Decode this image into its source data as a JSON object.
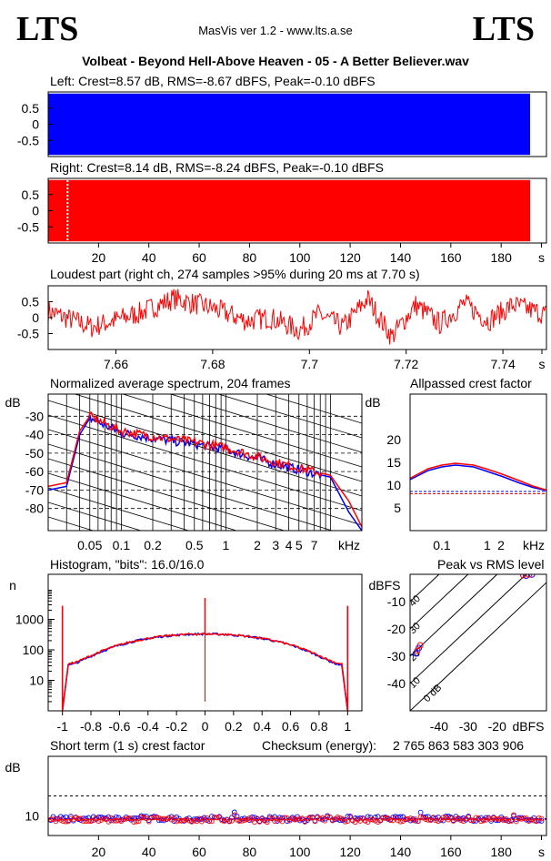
{
  "header": {
    "logo_left": "LTS",
    "logo_right": "LTS",
    "app_name": "MasVis ver 1.2 - www.lts.a.se",
    "file_title": "Volbeat - Beyond Hell-Above Heaven - 05 - A Better Believer.wav"
  },
  "colors": {
    "left": "#0000ff",
    "right": "#ff0000",
    "grid": "#000000"
  },
  "chart_data": [
    {
      "id": "left",
      "type": "area",
      "title": "Left: Crest=8.57 dB, RMS=-8.67 dBFS, Peak=-0.10 dBFS",
      "yticks": [
        "0.5",
        "0",
        "-0.5"
      ],
      "ylim": [
        -1,
        1
      ],
      "xlim": [
        0,
        198
      ],
      "series": [
        {
          "channel": "left",
          "values": [
            -1,
            1
          ]
        }
      ]
    },
    {
      "id": "right",
      "type": "area",
      "title": "Right: Crest=8.14 dB, RMS=-8.24 dBFS, Peak=-0.10 dBFS",
      "yticks": [
        "0.5",
        "0",
        "-0.5"
      ],
      "xticks": [
        "20",
        "40",
        "60",
        "80",
        "100",
        "120",
        "140",
        "160",
        "180",
        "s"
      ],
      "ylim": [
        -1,
        1
      ],
      "xlim": [
        0,
        198
      ],
      "marker_time": 7.7,
      "series": [
        {
          "channel": "right",
          "values": [
            -1,
            1
          ]
        }
      ]
    },
    {
      "id": "loudest",
      "type": "line",
      "title": "Loudest part (right ch, 274 samples >95% during 20 ms at 7.70 s)",
      "yticks": [
        "0.5",
        "0",
        "-0.5"
      ],
      "xticks": [
        "7.66",
        "7.68",
        "7.7",
        "7.72",
        "7.74",
        "s"
      ],
      "xlim": [
        7.646,
        7.749
      ],
      "ylim": [
        -1,
        1
      ],
      "x": [
        7.646,
        7.655,
        7.665,
        7.672,
        7.68,
        7.687,
        7.692,
        7.698,
        7.702,
        7.707,
        7.712,
        7.717,
        7.722,
        7.727,
        7.732,
        7.737,
        7.742,
        7.749
      ],
      "y": [
        0.2,
        -0.3,
        0.15,
        0.6,
        0.3,
        -0.1,
        0.0,
        -0.4,
        0.1,
        -0.3,
        0.6,
        -0.6,
        0.4,
        -0.2,
        0.45,
        -0.1,
        0.4,
        0.1
      ]
    },
    {
      "id": "spectrum",
      "type": "line",
      "title": "Normalized average spectrum, 204 frames",
      "ylabel": "dB",
      "yticks": [
        "-30",
        "-40",
        "-50",
        "-60",
        "-70",
        "-80"
      ],
      "xticks": [
        "0.05",
        "0.1",
        "0.2",
        "0.5",
        "1",
        "2",
        "3",
        "4",
        "5",
        "7",
        "kHz"
      ],
      "xlim": [
        0.02,
        20
      ],
      "ylim": [
        -92,
        -18
      ],
      "series": [
        {
          "channel": "left",
          "x": [
            0.02,
            0.03,
            0.04,
            0.05,
            0.07,
            0.1,
            0.2,
            0.5,
            1,
            2,
            3,
            5,
            7,
            10,
            15,
            20
          ],
          "y": [
            -70,
            -68,
            -40,
            -31,
            -35,
            -39,
            -42,
            -45,
            -48,
            -53,
            -56,
            -59,
            -61,
            -63,
            -82,
            -92
          ]
        },
        {
          "channel": "right",
          "x": [
            0.02,
            0.03,
            0.04,
            0.05,
            0.07,
            0.1,
            0.2,
            0.5,
            1,
            2,
            3,
            5,
            7,
            10,
            15,
            20
          ],
          "y": [
            -68,
            -66,
            -38,
            -30,
            -34,
            -38,
            -41,
            -44,
            -47,
            -52,
            -55,
            -58,
            -60,
            -62,
            -76,
            -90
          ]
        }
      ]
    },
    {
      "id": "allpass",
      "type": "line",
      "title": "Allpassed crest factor",
      "ylabel": "dB",
      "yticks": [
        "20",
        "15",
        "10",
        "5"
      ],
      "xticks": [
        "0.1",
        "1",
        "2",
        "kHz"
      ],
      "xlim": [
        0.02,
        20
      ],
      "ylim": [
        0,
        30
      ],
      "series": [
        {
          "channel": "left",
          "x": [
            0.02,
            0.05,
            0.1,
            0.2,
            0.5,
            1,
            2,
            5,
            10,
            20
          ],
          "y": [
            11.2,
            13.2,
            14.0,
            14.4,
            14.0,
            13.0,
            12.0,
            10.5,
            9.5,
            8.8
          ],
          "ref": 8.6
        },
        {
          "channel": "right",
          "x": [
            0.02,
            0.05,
            0.1,
            0.2,
            0.5,
            1,
            2,
            5,
            10,
            20
          ],
          "y": [
            11.5,
            13.6,
            14.4,
            14.8,
            14.4,
            13.5,
            12.5,
            11.0,
            9.8,
            8.9
          ],
          "ref": 8.1
        }
      ]
    },
    {
      "id": "histogram",
      "type": "line",
      "title": "Histogram, \"bits\": 16.0/16.0",
      "ylabel": "n",
      "yticks": [
        "1000",
        "100",
        "10"
      ],
      "xticks": [
        "-1",
        "-0.8",
        "-0.6",
        "-0.4",
        "-0.2",
        "0",
        "0.2",
        "0.4",
        "0.6",
        "0.8",
        "1"
      ],
      "xlim": [
        -1.1,
        1.1
      ],
      "ylim": [
        1,
        30000
      ],
      "series": [
        {
          "channel": "left",
          "x": [
            -1,
            -0.95,
            -0.8,
            -0.6,
            -0.4,
            -0.2,
            0,
            0.2,
            0.4,
            0.6,
            0.8,
            0.95,
            1
          ],
          "y": [
            2500,
            30,
            40,
            70,
            130,
            230,
            320,
            230,
            130,
            70,
            40,
            30,
            2500
          ]
        },
        {
          "channel": "right",
          "x": [
            -1,
            -0.95,
            -0.8,
            -0.6,
            -0.4,
            -0.2,
            0,
            0.2,
            0.4,
            0.6,
            0.8,
            0.95,
            1
          ],
          "y": [
            2800,
            32,
            42,
            72,
            135,
            240,
            330,
            240,
            135,
            72,
            42,
            32,
            2800
          ]
        }
      ]
    },
    {
      "id": "peak_rms",
      "type": "scatter",
      "title": "Peak vs RMS level",
      "ylabel": "dBFS",
      "yticks": [
        "-10",
        "-20",
        "-30",
        "-40"
      ],
      "xticks": [
        "-40",
        "-30",
        "-20",
        "dBFS"
      ],
      "diagonal_labels": [
        "40",
        "30",
        "20",
        "10",
        "0 dB"
      ],
      "xlim": [
        -50,
        -3
      ],
      "ylim": [
        -50,
        0
      ],
      "series": [
        {
          "channel": "left",
          "x": [
            -48,
            -47,
            -10,
            -8
          ],
          "y": [
            -29,
            -27,
            -0.5,
            -0.1
          ]
        },
        {
          "channel": "right",
          "x": [
            -47.5,
            -46.5,
            -11,
            -9
          ],
          "y": [
            -28,
            -26,
            -0.3,
            -0.1
          ]
        }
      ]
    },
    {
      "id": "short_term",
      "type": "scatter",
      "title": "Short term (1 s) crest factor",
      "checksum_label": "Checksum (energy):",
      "checksum_value": "2 765 863 583 303 906",
      "ylabel": "dB",
      "yticks": [
        "10"
      ],
      "xticks": [
        "20",
        "40",
        "60",
        "80",
        "100",
        "120",
        "140",
        "160",
        "180",
        "s"
      ],
      "xlim": [
        0,
        198
      ],
      "ylim": [
        0,
        40
      ],
      "ref_line": 20,
      "series": [
        {
          "channel": "left",
          "mean": 8.5
        },
        {
          "channel": "right",
          "mean": 8.0
        }
      ]
    }
  ]
}
